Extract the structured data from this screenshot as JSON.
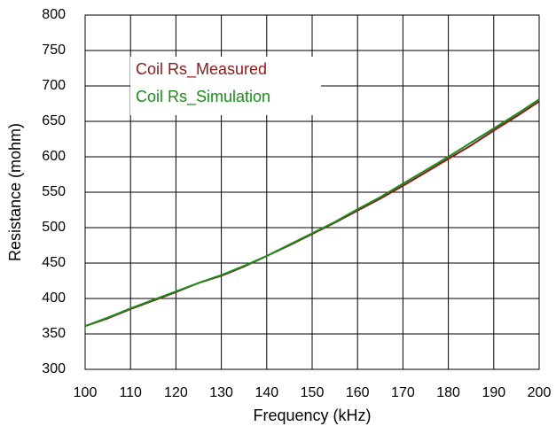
{
  "chart_data": {
    "type": "line",
    "x_label": "Frequency (kHz)",
    "y_label": "Resistance (mohm)",
    "x": [
      100,
      105,
      110,
      115,
      120,
      125,
      130,
      135,
      140,
      145,
      150,
      155,
      160,
      165,
      170,
      175,
      180,
      185,
      190,
      195,
      200
    ],
    "series": [
      {
        "name": "Coil Rs_Measured",
        "color": "#8b1a1a",
        "values": [
          361,
          372,
          385,
          397,
          409,
          422,
          432,
          445,
          460,
          475,
          491,
          507,
          524,
          541,
          559,
          578,
          597,
          616,
          637,
          657,
          678
        ]
      },
      {
        "name": "Coil Rs_Simulation",
        "color": "#1a8c1a",
        "values": [
          361,
          373,
          386,
          398,
          410,
          422,
          433,
          446,
          460,
          476,
          492,
          508,
          526,
          543,
          562,
          581,
          600,
          620,
          640,
          660,
          681
        ]
      }
    ],
    "xlim": [
      100,
      200
    ],
    "xticks": [
      100,
      110,
      120,
      130,
      140,
      150,
      160,
      170,
      180,
      190,
      200
    ],
    "ylim": [
      300,
      800
    ],
    "yticks": [
      300,
      350,
      400,
      450,
      500,
      550,
      600,
      650,
      700,
      750,
      800
    ],
    "grid": true,
    "legend": "upper left"
  }
}
